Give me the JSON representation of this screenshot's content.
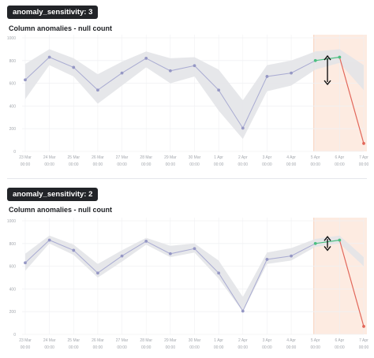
{
  "colors": {
    "band": "#e3e4e8",
    "line": "#a9abd2",
    "point": "#9597c4",
    "green": "#4cbf82",
    "red": "#e2675a",
    "highlight": "#fdebe1",
    "highlight_border": "#f6c8ae",
    "grid": "#f0f1f3",
    "axis_text": "#a3a7ad"
  },
  "panels": [
    {
      "badge": "anomaly_sensitivity: 3",
      "title": "Column anomalies - null count"
    },
    {
      "badge": "anomaly_sensitivity: 2",
      "title": "Column anomalies - null count"
    }
  ],
  "chart_data": [
    {
      "type": "line",
      "title": "Column anomalies - null count",
      "ylim": [
        0,
        1000
      ],
      "yticks": [
        "0",
        "200",
        "400",
        "600",
        "800",
        "1000"
      ],
      "x_dates": [
        "23 Mar",
        "24 Mar",
        "25 Mar",
        "26 Mar",
        "27 Mar",
        "28 Mar",
        "29 Mar",
        "30 Mar",
        "1 Apr",
        "2 Apr",
        "3 Apr",
        "4 Apr",
        "5 Apr",
        "6 Apr",
        "7 Apr"
      ],
      "x_times": [
        "00:00",
        "00:00",
        "00:00",
        "00:00",
        "00:00",
        "00:00",
        "00:00",
        "00:00",
        "00:00",
        "00:00",
        "00:00",
        "00:00",
        "00:00",
        "00:00",
        "00:00"
      ],
      "values": [
        630,
        830,
        740,
        540,
        690,
        820,
        710,
        755,
        540,
        205,
        660,
        690,
        800,
        830,
        70
      ],
      "band_upper": [
        770,
        900,
        820,
        680,
        790,
        880,
        820,
        830,
        720,
        450,
        760,
        800,
        880,
        900,
        760
      ],
      "band_lower": [
        460,
        760,
        660,
        420,
        580,
        740,
        600,
        660,
        360,
        110,
        530,
        580,
        720,
        780,
        540
      ],
      "highlight_range": [
        12,
        14
      ],
      "anomaly_arrow": {
        "index": 12.5,
        "from": 840,
        "to": 590
      },
      "grid": true
    },
    {
      "type": "line",
      "title": "Column anomalies - null count",
      "ylim": [
        0,
        1000
      ],
      "yticks": [
        "0",
        "200",
        "400",
        "600",
        "800",
        "1000"
      ],
      "x_dates": [
        "23 Mar",
        "24 Mar",
        "25 Mar",
        "26 Mar",
        "27 Mar",
        "28 Mar",
        "29 Mar",
        "30 Mar",
        "1 Apr",
        "2 Apr",
        "3 Apr",
        "4 Apr",
        "5 Apr",
        "6 Apr",
        "7 Apr"
      ],
      "x_times": [
        "00:00",
        "00:00",
        "00:00",
        "00:00",
        "00:00",
        "00:00",
        "00:00",
        "00:00",
        "00:00",
        "00:00",
        "00:00",
        "00:00",
        "00:00",
        "00:00",
        "00:00"
      ],
      "values": [
        630,
        830,
        740,
        540,
        690,
        820,
        710,
        755,
        540,
        205,
        660,
        690,
        800,
        830,
        70
      ],
      "band_upper": [
        710,
        870,
        790,
        620,
        740,
        850,
        780,
        800,
        650,
        330,
        720,
        760,
        840,
        870,
        680
      ],
      "band_lower": [
        560,
        800,
        700,
        500,
        640,
        790,
        680,
        720,
        490,
        200,
        620,
        650,
        770,
        800,
        600
      ],
      "highlight_range": [
        12,
        14
      ],
      "anomaly_arrow": {
        "index": 12.5,
        "from": 860,
        "to": 740
      },
      "grid": true
    }
  ]
}
